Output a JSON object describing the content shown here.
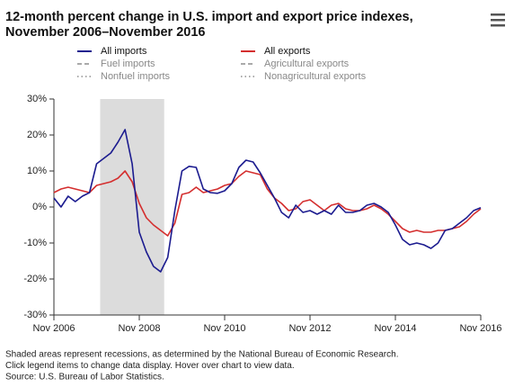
{
  "chart_data": {
    "type": "line",
    "title": "12-month percent change in U.S. import and export price indexes,",
    "subtitle": "November 2006–November 2016",
    "x": [
      "2006-11",
      "2007-01",
      "2007-03",
      "2007-05",
      "2007-07",
      "2007-09",
      "2007-11",
      "2008-01",
      "2008-03",
      "2008-05",
      "2008-07",
      "2008-09",
      "2008-11",
      "2009-01",
      "2009-03",
      "2009-05",
      "2009-07",
      "2009-09",
      "2009-11",
      "2010-01",
      "2010-03",
      "2010-05",
      "2010-07",
      "2010-09",
      "2010-11",
      "2011-01",
      "2011-03",
      "2011-05",
      "2011-07",
      "2011-09",
      "2011-11",
      "2012-01",
      "2012-03",
      "2012-05",
      "2012-07",
      "2012-09",
      "2012-11",
      "2013-01",
      "2013-03",
      "2013-05",
      "2013-07",
      "2013-09",
      "2013-11",
      "2014-01",
      "2014-03",
      "2014-05",
      "2014-07",
      "2014-09",
      "2014-11",
      "2015-01",
      "2015-03",
      "2015-05",
      "2015-07",
      "2015-09",
      "2015-11",
      "2016-01",
      "2016-03",
      "2016-05",
      "2016-07",
      "2016-09",
      "2016-11"
    ],
    "series": [
      {
        "name": "All imports",
        "color": "#1b1b8f",
        "values": [
          2.5,
          0,
          3,
          1.5,
          3,
          4,
          12,
          13.5,
          15,
          18,
          21.5,
          12,
          -7,
          -12.5,
          -16.5,
          -18,
          -14,
          -1,
          10,
          11.3,
          11,
          5,
          4,
          3.8,
          4.5,
          6.5,
          11,
          13,
          12.5,
          9.5,
          6,
          2.5,
          -1.5,
          -3,
          0.5,
          -1.5,
          -1,
          -2,
          -1,
          -2,
          0.5,
          -1.5,
          -1.5,
          -1,
          0.5,
          1,
          0,
          -1.5,
          -5,
          -9,
          -10.5,
          -10,
          -10.5,
          -11.5,
          -10,
          -6.5,
          -6,
          -4.5,
          -3,
          -1,
          -0.2
        ]
      },
      {
        "name": "All exports",
        "color": "#d42e2e",
        "values": [
          4,
          5,
          5.5,
          5,
          4.5,
          4,
          6,
          6.5,
          7,
          8,
          10,
          7,
          1,
          -3,
          -5,
          -6.5,
          -8,
          -4.5,
          3.5,
          4,
          5.5,
          4,
          4.5,
          5,
          6,
          6.5,
          8.5,
          10,
          9.5,
          9,
          5,
          2.5,
          1,
          -1,
          -0.5,
          1.5,
          2,
          0.5,
          -1,
          0.5,
          1,
          -0.5,
          -1,
          -1,
          -0.5,
          0.5,
          -0.5,
          -2,
          -4,
          -6,
          -7,
          -6.5,
          -7,
          -7,
          -6.5,
          -6.5,
          -6,
          -5.5,
          -4,
          -2,
          -0.5
        ]
      }
    ],
    "inactive_legend": [
      {
        "name": "Fuel imports",
        "dash": "dashed"
      },
      {
        "name": "Agricultural exports",
        "dash": "dashed"
      },
      {
        "name": "Nonfuel imports",
        "dash": "dotted"
      },
      {
        "name": "Nonagricultural exports",
        "dash": "dotted"
      }
    ],
    "recessions": [
      {
        "start": "2007-12",
        "end": "2009-06"
      }
    ],
    "recession_color": "#dcdcdc",
    "xticks": [
      {
        "value": "2006-11",
        "label": "Nov 2006"
      },
      {
        "value": "2008-11",
        "label": "Nov 2008"
      },
      {
        "value": "2010-11",
        "label": "Nov 2010"
      },
      {
        "value": "2012-11",
        "label": "Nov 2012"
      },
      {
        "value": "2014-11",
        "label": "Nov 2014"
      },
      {
        "value": "2016-11",
        "label": "Nov 2016"
      }
    ],
    "ylim": [
      -30,
      30
    ],
    "yticks": [
      {
        "value": -30,
        "label": "-30%"
      },
      {
        "value": -20,
        "label": "-20%"
      },
      {
        "value": -10,
        "label": "-10%"
      },
      {
        "value": 0,
        "label": "0%"
      },
      {
        "value": 10,
        "label": "10%"
      },
      {
        "value": 20,
        "label": "20%"
      },
      {
        "value": 30,
        "label": "30%"
      }
    ],
    "grid": false,
    "notes": [
      "Shaded areas represent recessions, as determined by the National Bureau of Economic Research.",
      "Click legend items to change data display. Hover over chart to view data.",
      "Source: U.S. Bureau of Labor Statistics."
    ]
  }
}
